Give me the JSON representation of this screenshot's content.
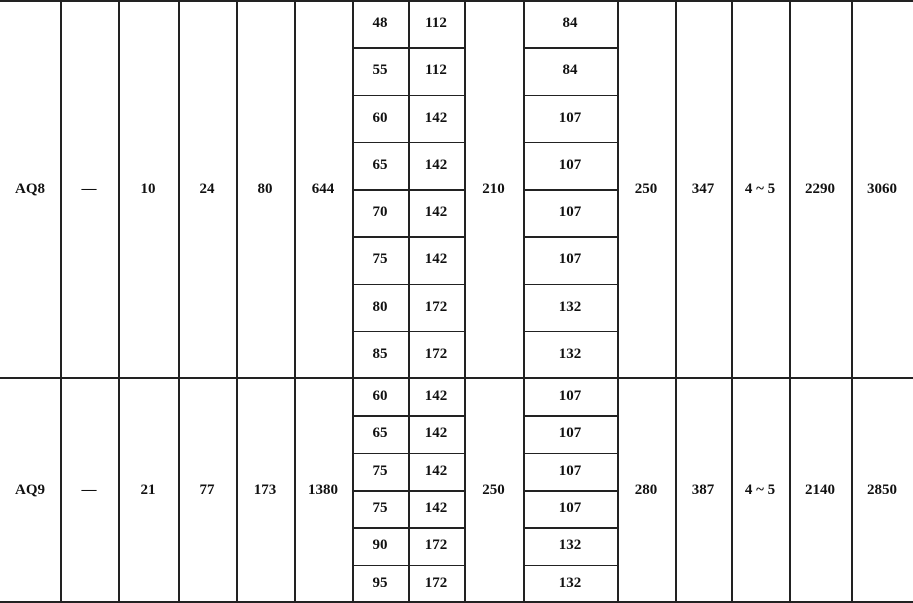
{
  "table": {
    "groups": [
      {
        "model": "AQ8",
        "c2": "—",
        "c3": "10",
        "c4": "24",
        "c5": "80",
        "c6": "644",
        "sub_rows": [
          {
            "a": "48",
            "b": "112",
            "d": "84"
          },
          {
            "a": "55",
            "b": "112",
            "d": "84"
          },
          {
            "a": "60",
            "b": "142",
            "d": "107"
          },
          {
            "a": "65",
            "b": "142",
            "d": "107"
          },
          {
            "a": "70",
            "b": "142",
            "d": "107"
          },
          {
            "a": "75",
            "b": "142",
            "d": "107"
          },
          {
            "a": "80",
            "b": "172",
            "d": "132"
          },
          {
            "a": "85",
            "b": "172",
            "d": "132"
          }
        ],
        "c9": "210",
        "c11": "250",
        "c12": "347",
        "c13": "4 ~ 5",
        "c14": "2290",
        "c15": "3060"
      },
      {
        "model": "AQ9",
        "c2": "—",
        "c3": "21",
        "c4": "77",
        "c5": "173",
        "c6": "1380",
        "sub_rows": [
          {
            "a": "60",
            "b": "142",
            "d": "107"
          },
          {
            "a": "65",
            "b": "142",
            "d": "107"
          },
          {
            "a": "75",
            "b": "142",
            "d": "107"
          },
          {
            "a": "75",
            "b": "142",
            "d": "107"
          },
          {
            "a": "90",
            "b": "172",
            "d": "132"
          },
          {
            "a": "95",
            "b": "172",
            "d": "132"
          }
        ],
        "c9": "250",
        "c11": "280",
        "c12": "387",
        "c13": "4 ~ 5",
        "c14": "2140",
        "c15": "2850"
      }
    ]
  }
}
